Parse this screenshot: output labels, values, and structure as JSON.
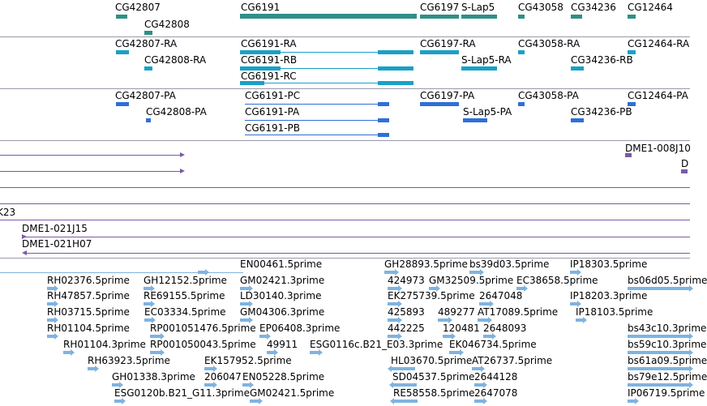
{
  "colors": {
    "gene": "#2e8f86",
    "mrna": "#1aa0c8",
    "protein": "#2f6fd6",
    "clone": "#7a5aa6",
    "est": "#7fb3e0"
  },
  "genes": [
    "CG42807",
    "CG42808",
    "CG6191",
    "CG6197",
    "S-Lap5",
    "CG43058",
    "CG34236",
    "CG12464"
  ],
  "mrnas": [
    "CG42807-RA",
    "CG42808-RA",
    "CG6191-RA",
    "CG6191-RB",
    "CG6191-RC",
    "CG6197-RA",
    "S-Lap5-RA",
    "CG43058-RA",
    "CG34236-RB",
    "CG12464-RA"
  ],
  "proteins": [
    "CG42807-PA",
    "CG42808-PA",
    "CG6191-PC",
    "CG6191-PA",
    "CG6191-PB",
    "CG6197-PA",
    "S-Lap5-PA",
    "CG43058-PA",
    "CG34236-PB",
    "CG12464-PA"
  ],
  "clones": [
    "DME1-008J10",
    "D",
    "K23",
    "DME1-021J15",
    "DME1-021H07"
  ],
  "ests": [
    "EN00461.5prime",
    "GH28893.5prime",
    "bs39d03.5prime",
    "IP18303.5prime",
    "RH02376.5prime",
    "GH12152.5prime",
    "GM02421.3prime",
    "424973",
    "GM32509.5prime",
    "EC38658.5prime",
    "bs06d05.5prime",
    "RH47857.5prime",
    "RE69155.5prime",
    "LD30140.3prime",
    "EK275739.5prime",
    "2647048",
    "IP18203.3prime",
    "RH03715.5prime",
    "EC03334.5prime",
    "GM04306.3prime",
    "425893",
    "489277",
    "AT17089.5prime",
    "IP18103.5prime",
    "RH01104.5prime",
    "RP001051476.5prime",
    "EP06408.3prime",
    "442225",
    "120481",
    "2648093",
    "bs43c10.3prime",
    "RH01104.3prime",
    "RP001050043.5prime",
    "49911",
    "ESG0116c.B21_E03.3prime",
    "EK046734.5prime",
    "bs59c10.3prime",
    "RH63923.5prime",
    "EK157952.5prime",
    "HL03670.5prime",
    "AT26737.5prime",
    "bs61a09.5prime",
    "GH01338.3prime",
    "206047",
    "EN05228.5prime",
    "SD04537.5prime",
    "2644128",
    "bs79e12.5prime",
    "ESG0120b.B21_G11.3prime",
    "GM02421.5prime",
    "RE58558.5prime",
    "2647078",
    "IP06719.5prime"
  ]
}
